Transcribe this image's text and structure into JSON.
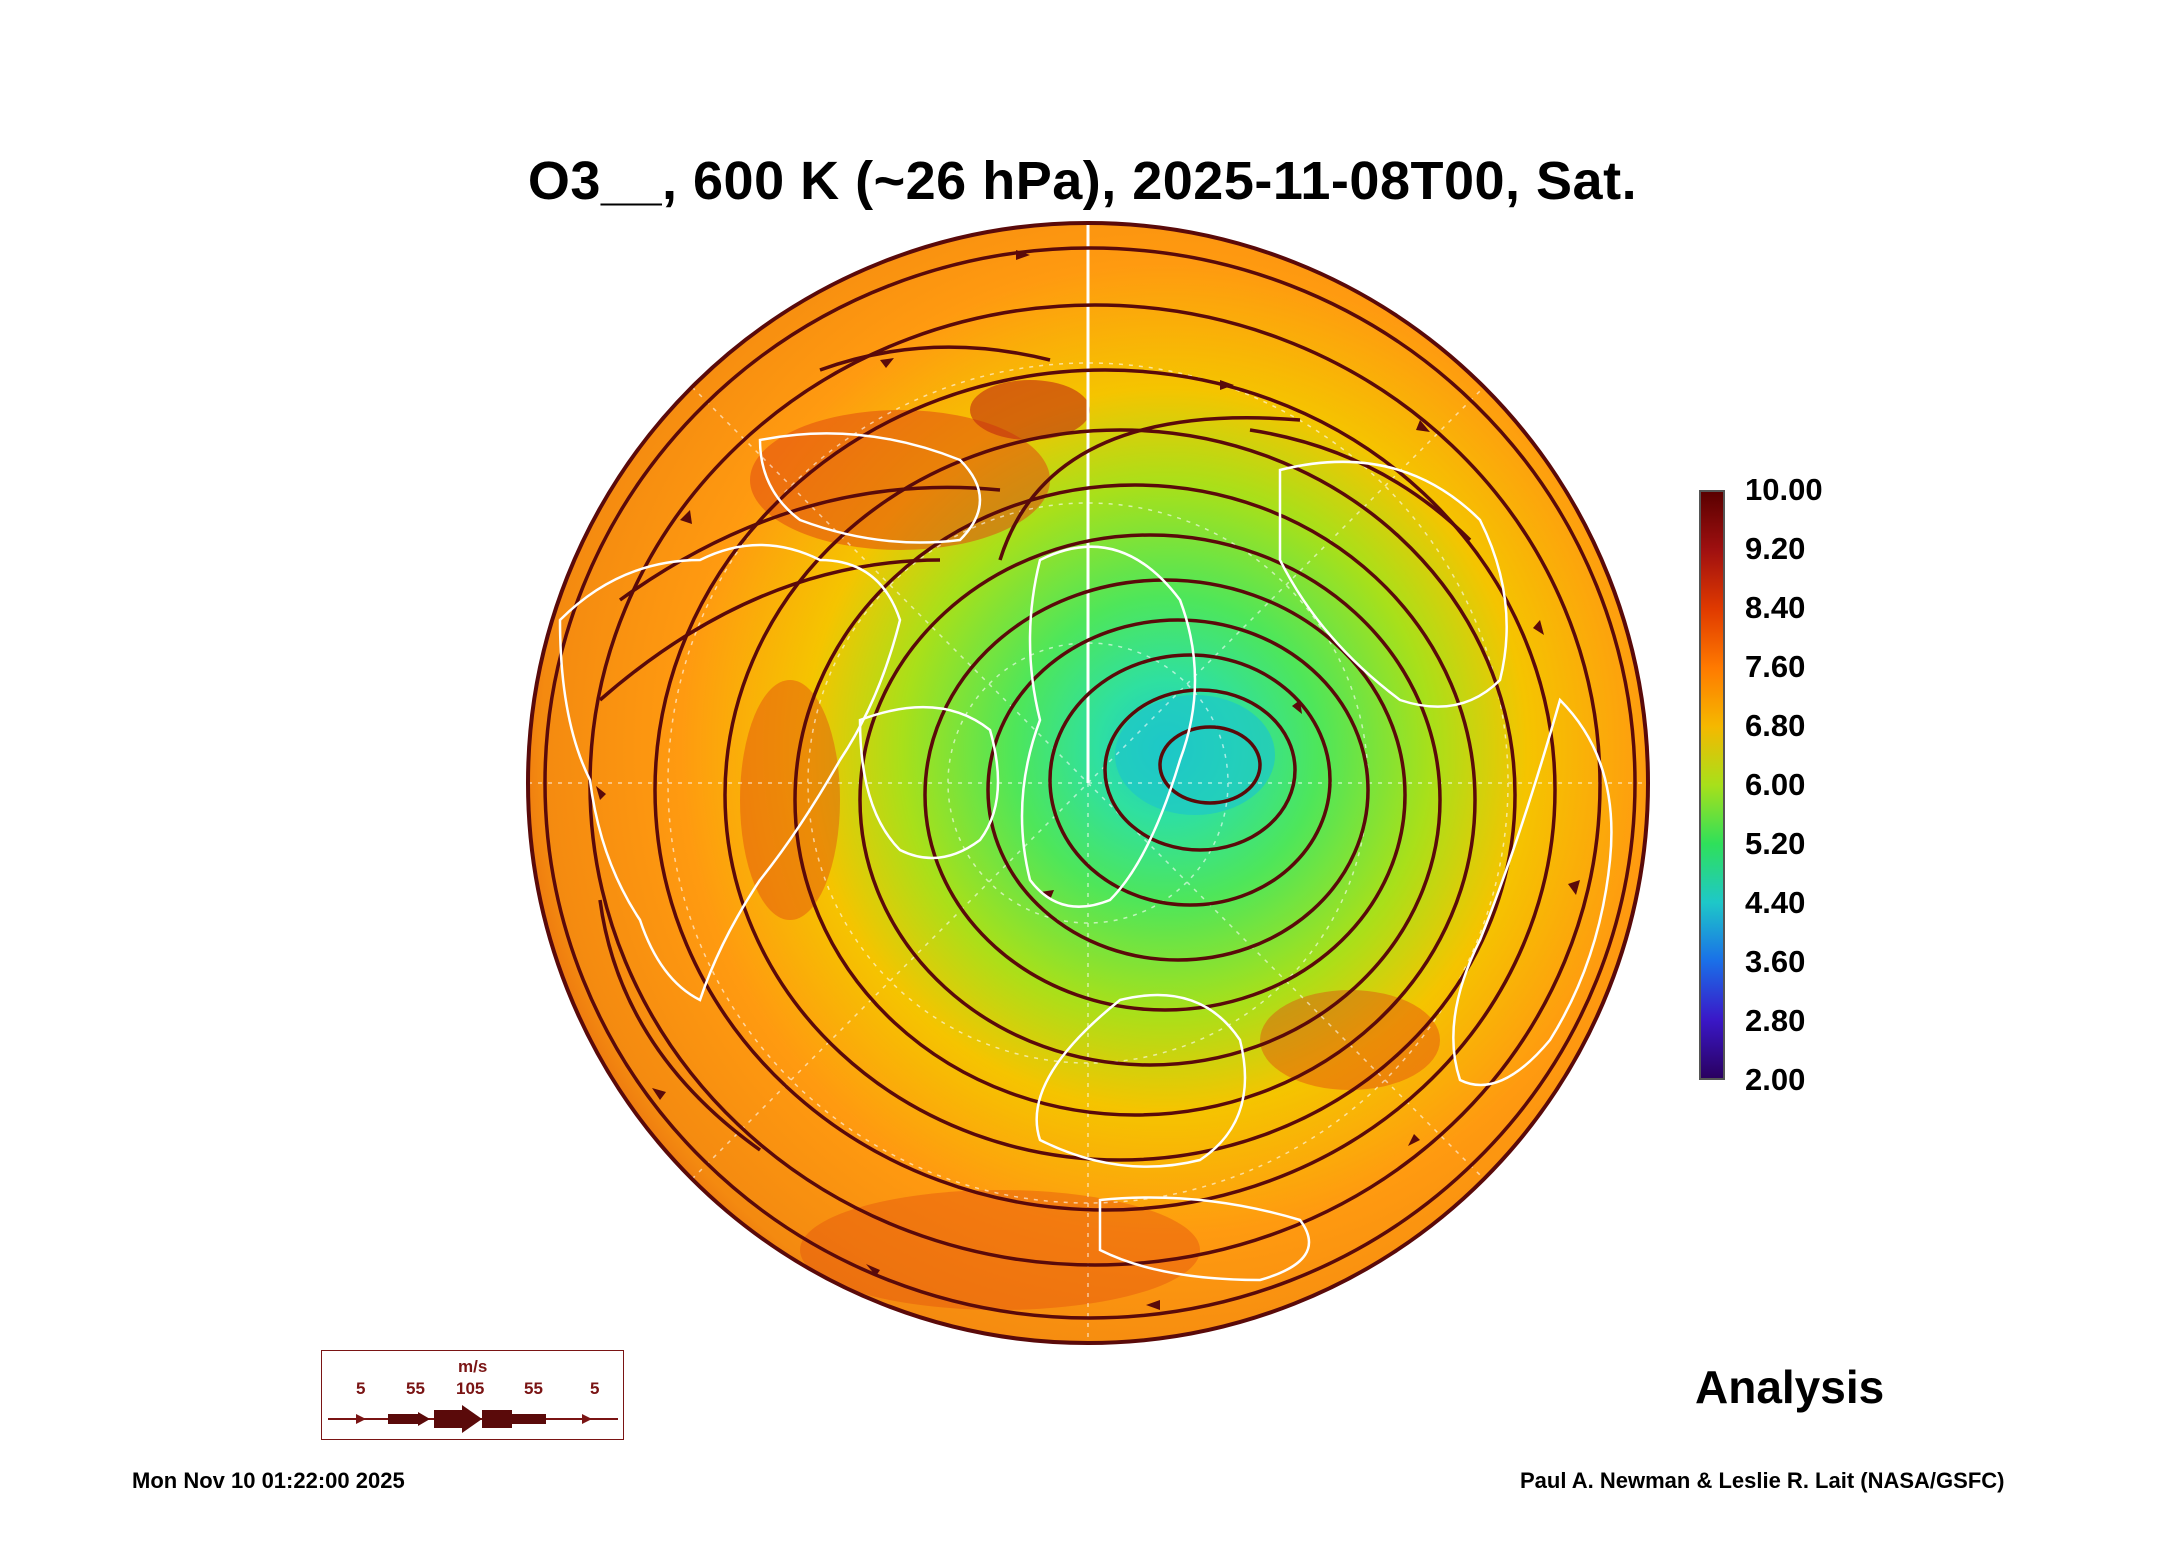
{
  "title": "O3__, 600 K (~26 hPa), 2025-11-08T00, Sat.",
  "colorbar": {
    "labels": [
      "10.00",
      "9.20",
      "8.40",
      "7.60",
      "6.80",
      "6.00",
      "5.20",
      "4.40",
      "3.60",
      "2.80",
      "2.00"
    ],
    "colors": [
      "#5a0000",
      "#a01010",
      "#e03a00",
      "#ff7a00",
      "#f5b800",
      "#a8e01a",
      "#2fe05a",
      "#1ec8c8",
      "#1a70e8",
      "#3a18c8",
      "#2a0060"
    ]
  },
  "wind_legend": {
    "unit": "m/s",
    "values": [
      "5",
      "55",
      "105",
      "55",
      "5"
    ]
  },
  "stamp": "Analysis",
  "timestamp": "Mon Nov 10 01:22:00 2025",
  "credit": "Paul A. Newman & Leslie R. Lait (NASA/GSFC)",
  "colors": {
    "streamline": "#5a0a0a",
    "coast": "#ffffff",
    "high": "#e05a10",
    "mid": "#ff9a10",
    "low": "#3ee070"
  }
}
